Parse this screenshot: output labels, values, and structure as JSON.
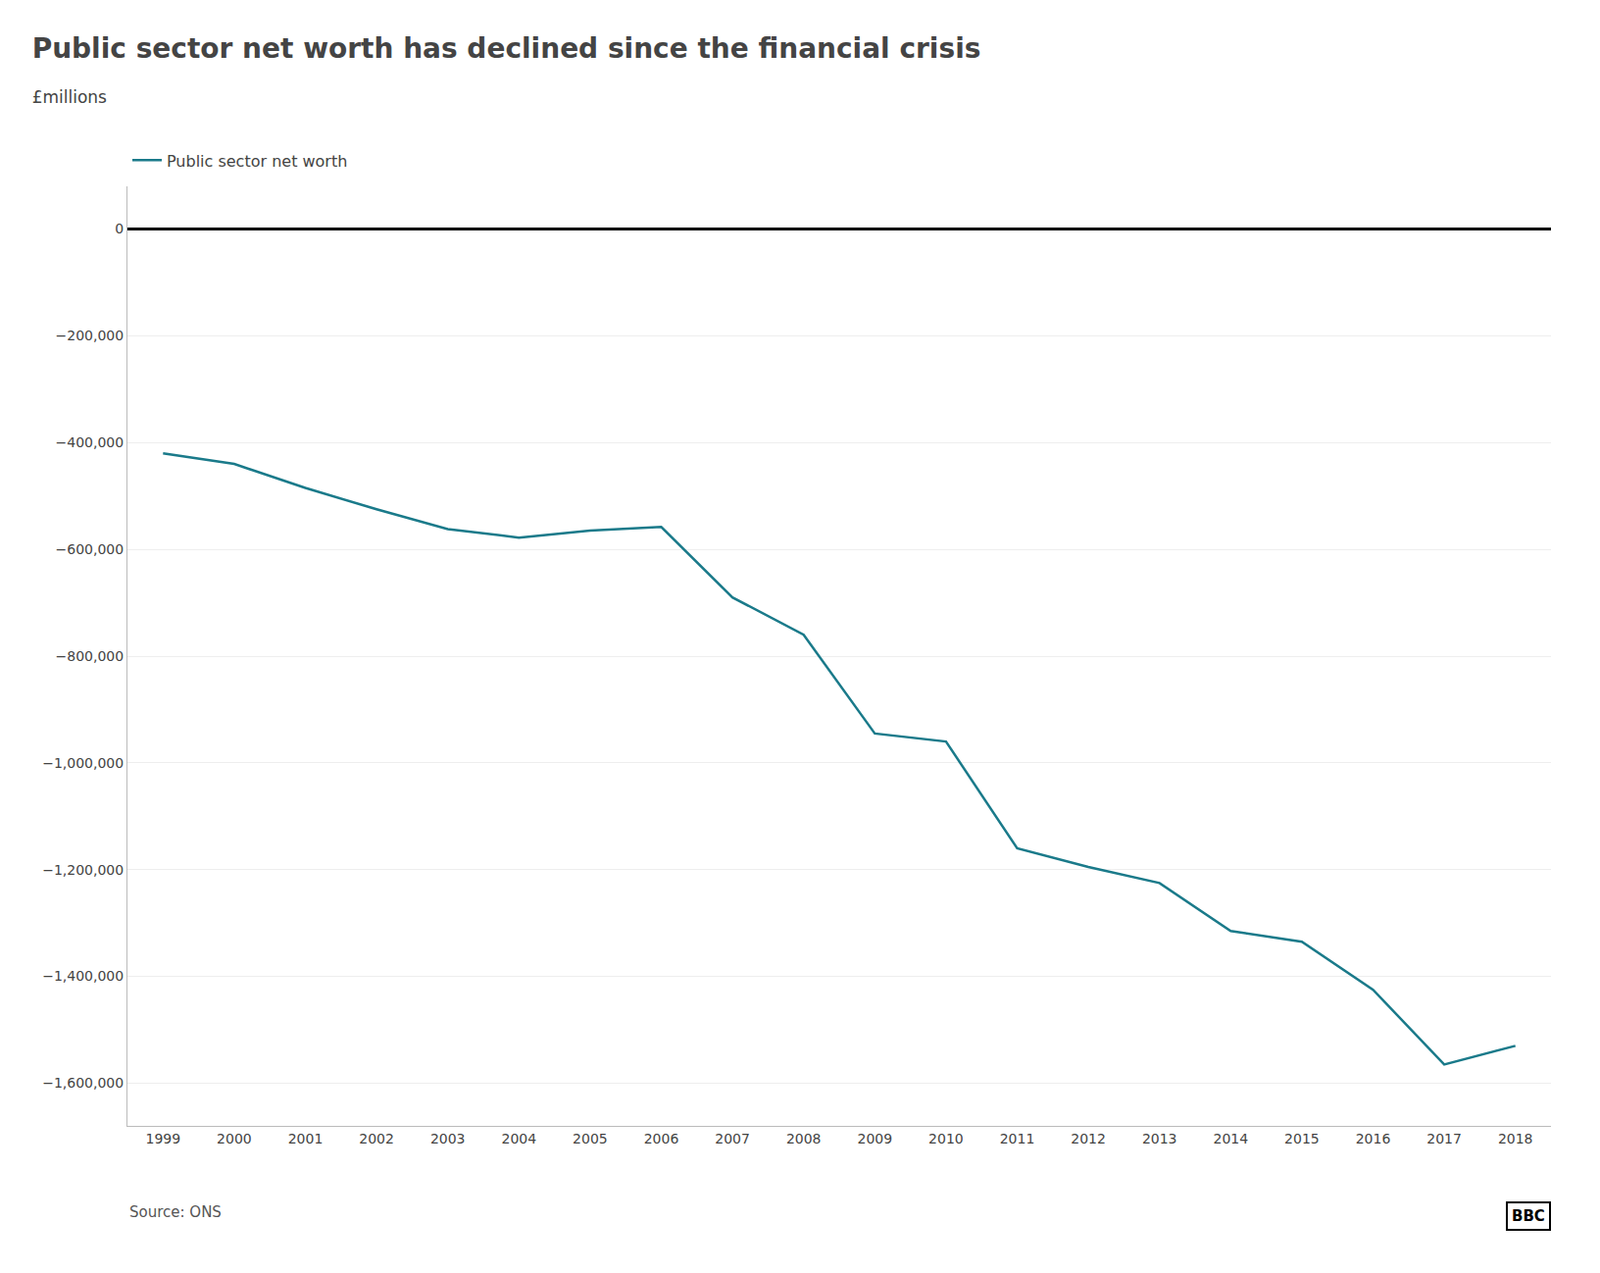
{
  "chart_data": {
    "type": "line",
    "title": "Public sector net worth has declined since the financial crisis",
    "subtitle": "£millions",
    "annotations": [
      "Source: ONS",
      "BBC"
    ],
    "x": [
      1999,
      2000,
      2001,
      2002,
      2003,
      2004,
      2005,
      2006,
      2007,
      2008,
      2009,
      2010,
      2011,
      2012,
      2013,
      2014,
      2015,
      2016,
      2017,
      2018
    ],
    "series": [
      {
        "name": "Public sector net worth",
        "color": "#1a7a8a",
        "values": [
          -420000,
          -440000,
          -485000,
          -525000,
          -562000,
          -578000,
          -565000,
          -558000,
          -690000,
          -760000,
          -945000,
          -960000,
          -1160000,
          -1195000,
          -1225000,
          -1315000,
          -1335000,
          -1425000,
          -1565000,
          -1530000
        ]
      }
    ],
    "xlim": [
      1998.5,
      2018.5
    ],
    "xticks": [
      1999,
      2000,
      2001,
      2002,
      2003,
      2004,
      2005,
      2006,
      2007,
      2008,
      2009,
      2010,
      2011,
      2012,
      2013,
      2014,
      2015,
      2016,
      2017,
      2018
    ],
    "ylim": [
      -1680000,
      80000
    ],
    "yticks": [
      0,
      {
        "value": -200000,
        "label": "−200,000"
      },
      {
        "value": -400000,
        "label": "−400,000"
      },
      {
        "value": -600000,
        "label": "−600,000"
      },
      {
        "value": -800000,
        "label": "−800,000"
      },
      {
        "value": -1000000,
        "label": "−1,000,000"
      },
      {
        "value": -1200000,
        "label": "−1,200,000"
      },
      {
        "value": -1400000,
        "label": "−1,400,000"
      },
      {
        "value": -1600000,
        "label": "−1,600,000"
      }
    ],
    "grid": true,
    "legend": "upper left"
  }
}
